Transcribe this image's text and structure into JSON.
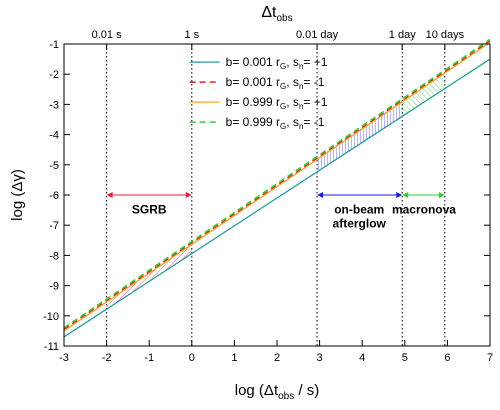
{
  "chart_data": {
    "type": "line",
    "xlabel": "log (Δt",
    "xlabel_sub": "obs",
    "xlabel_tail": " / s)",
    "ylabel": "log (Δγ)",
    "top_axis_label": "Δt",
    "top_axis_label_sub": "obs",
    "xlim": [
      -3,
      7
    ],
    "ylim": [
      -11,
      -1
    ],
    "x_ticks": [
      -3,
      -2,
      -1,
      0,
      1,
      2,
      3,
      4,
      5,
      6,
      7
    ],
    "y_ticks": [
      -11,
      -10,
      -9,
      -8,
      -7,
      -6,
      -5,
      -4,
      -3,
      -2,
      -1
    ],
    "top_ticks": [
      {
        "x": -2,
        "label": "0.01 s"
      },
      {
        "x": 0,
        "label": "1 s"
      },
      {
        "x": 2.94,
        "label": "0.01 day"
      },
      {
        "x": 4.94,
        "label": "1 day"
      },
      {
        "x": 5.94,
        "label": "10 days"
      }
    ],
    "series": [
      {
        "name": "b= 0.001 r",
        "name_sub": "G",
        "name_mid": ", s",
        "name_sub2": "n",
        "name_tail": "= +1",
        "color": "#2a9d9d",
        "dash": "solid",
        "x": [
          -3,
          7
        ],
        "y": [
          -10.7,
          -1.5
        ]
      },
      {
        "name": "b= 0.001 r",
        "name_sub": "G",
        "name_mid": ", s",
        "name_sub2": "n",
        "name_tail": "= -1",
        "color": "#d62728",
        "dash": "dashed",
        "x": [
          -3,
          7
        ],
        "y": [
          -10.45,
          -0.9
        ]
      },
      {
        "name": "b= 0.999 r",
        "name_sub": "G",
        "name_mid": ", s",
        "name_sub2": "n",
        "name_tail": "= +1",
        "color": "#f5a623",
        "dash": "solid",
        "x": [
          -3,
          7
        ],
        "y": [
          -10.5,
          -0.95
        ]
      },
      {
        "name": "b= 0.999 r",
        "name_sub": "G",
        "name_mid": ", s",
        "name_sub2": "n",
        "name_tail": "= -1",
        "color": "#3ccc3c",
        "dash": "dashed",
        "x": [
          -3,
          7
        ],
        "y": [
          -10.4,
          -0.85
        ]
      }
    ],
    "regions": [
      {
        "label": "SGRB",
        "x": [
          -2,
          0
        ],
        "y_arrow": -6.0,
        "color": "#e0203a",
        "label_x": -1.0,
        "label_y": -6.45
      },
      {
        "label": "on-beam",
        "label2": "afterglow",
        "x": [
          2.94,
          4.94
        ],
        "y_arrow": -6.0,
        "color": "#1a1ae0",
        "label_x": 3.93,
        "label_y": -6.45
      },
      {
        "label": "macronova",
        "x": [
          4.94,
          5.94
        ],
        "y_arrow": -6.0,
        "color": "#33cc33",
        "label_x": 5.45,
        "label_y": -6.45
      }
    ],
    "legend_position": "top-center",
    "grid": false
  }
}
